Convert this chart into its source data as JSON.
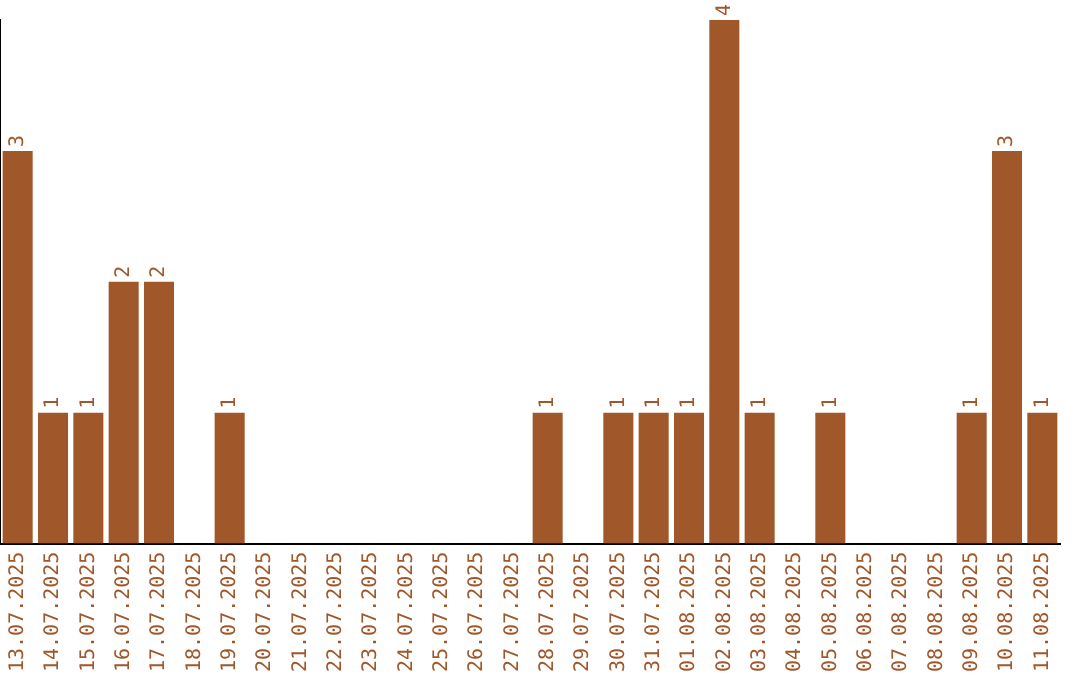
{
  "chart_data": {
    "type": "bar",
    "categories": [
      "13.07.2025",
      "14.07.2025",
      "15.07.2025",
      "16.07.2025",
      "17.07.2025",
      "18.07.2025",
      "19.07.2025",
      "20.07.2025",
      "21.07.2025",
      "22.07.2025",
      "23.07.2025",
      "24.07.2025",
      "25.07.2025",
      "26.07.2025",
      "27.07.2025",
      "28.07.2025",
      "29.07.2025",
      "30.07.2025",
      "31.07.2025",
      "01.08.2025",
      "02.08.2025",
      "03.08.2025",
      "04.08.2025",
      "05.08.2025",
      "06.08.2025",
      "07.08.2025",
      "08.08.2025",
      "09.08.2025",
      "10.08.2025",
      "11.08.2025"
    ],
    "values": [
      3,
      1,
      1,
      2,
      2,
      0,
      1,
      0,
      0,
      0,
      0,
      0,
      0,
      0,
      0,
      1,
      0,
      1,
      1,
      1,
      4,
      1,
      0,
      1,
      0,
      0,
      0,
      1,
      3,
      1
    ],
    "value_labels": [
      "3",
      "1",
      "1",
      "2",
      "2",
      null,
      "1",
      null,
      null,
      null,
      null,
      null,
      null,
      null,
      null,
      "1",
      null,
      "1",
      "1",
      "1",
      "4",
      "1",
      null,
      "1",
      null,
      null,
      null,
      "1",
      "3",
      "1"
    ],
    "color": "#a0572a",
    "grid": false,
    "tick_labels": "x"
  }
}
